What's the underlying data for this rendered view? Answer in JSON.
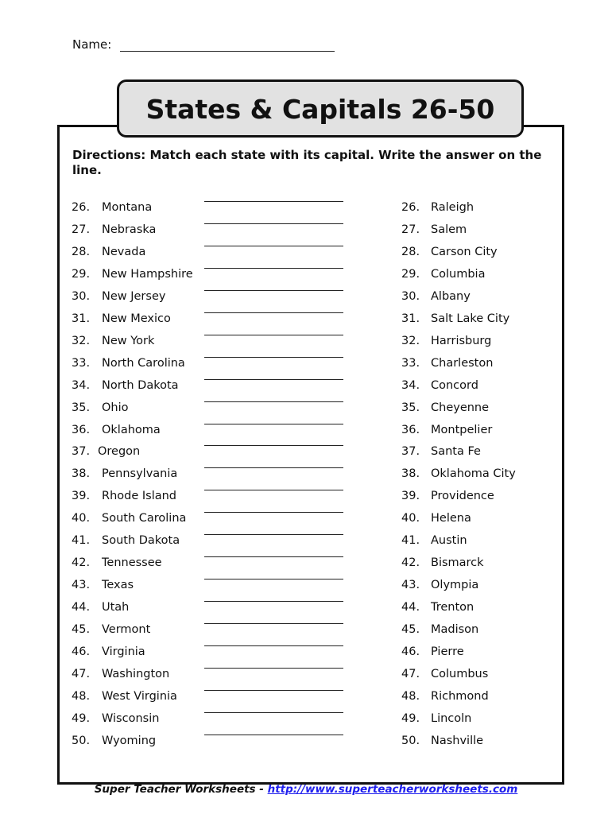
{
  "header": {
    "name_label": "Name:"
  },
  "title": "States & Capitals  26-50",
  "directions": "Directions:  Match each state with its capital.  Write the answer on the line.",
  "rows": [
    {
      "num": "26.",
      "state": "Montana",
      "capital": "Raleigh"
    },
    {
      "num": "27.",
      "state": "Nebraska",
      "capital": "Salem"
    },
    {
      "num": "28.",
      "state": "Nevada",
      "capital": "Carson City"
    },
    {
      "num": "29.",
      "state": "New Hampshire",
      "capital": "Columbia"
    },
    {
      "num": "30.",
      "state": "New Jersey",
      "capital": "Albany"
    },
    {
      "num": "31.",
      "state": "New Mexico",
      "capital": "Salt Lake City"
    },
    {
      "num": "32.",
      "state": "New York",
      "capital": "Harrisburg"
    },
    {
      "num": "33.",
      "state": "North Carolina",
      "capital": "Charleston"
    },
    {
      "num": "34.",
      "state": "North Dakota",
      "capital": "Concord"
    },
    {
      "num": "35.",
      "state": "Ohio",
      "capital": "Cheyenne"
    },
    {
      "num": "36.",
      "state": "Oklahoma",
      "capital": "Montpelier"
    },
    {
      "num": "37.",
      "state": "Oregon",
      "capital": "Santa Fe"
    },
    {
      "num": "38.",
      "state": "Pennsylvania",
      "capital": "Oklahoma City"
    },
    {
      "num": "39.",
      "state": "Rhode Island",
      "capital": "Providence"
    },
    {
      "num": "40.",
      "state": "South Carolina",
      "capital": "Helena"
    },
    {
      "num": "41.",
      "state": "South Dakota",
      "capital": "Austin"
    },
    {
      "num": "42.",
      "state": "Tennessee",
      "capital": "Bismarck"
    },
    {
      "num": "43.",
      "state": "Texas",
      "capital": "Olympia"
    },
    {
      "num": "44.",
      "state": "Utah",
      "capital": "Trenton"
    },
    {
      "num": "45.",
      "state": "Vermont",
      "capital": "Madison"
    },
    {
      "num": "46.",
      "state": "Virginia",
      "capital": "Pierre"
    },
    {
      "num": "47.",
      "state": "Washington",
      "capital": "Columbus"
    },
    {
      "num": "48.",
      "state": "West Virginia",
      "capital": "Richmond"
    },
    {
      "num": "49.",
      "state": "Wisconsin",
      "capital": "Lincoln"
    },
    {
      "num": "50.",
      "state": "Wyoming",
      "capital": "Nashville"
    }
  ],
  "footer": {
    "brand": "Super Teacher Worksheets  - ",
    "link": "http://www.superteacherworksheets.com",
    "link_color": "#2020ee"
  }
}
